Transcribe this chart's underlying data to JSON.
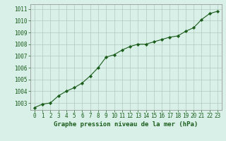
{
  "x": [
    0,
    1,
    2,
    3,
    4,
    5,
    6,
    7,
    8,
    9,
    10,
    11,
    12,
    13,
    14,
    15,
    16,
    17,
    18,
    19,
    20,
    21,
    22,
    23
  ],
  "y": [
    1002.6,
    1002.9,
    1003.0,
    1003.6,
    1004.0,
    1004.3,
    1004.7,
    1005.3,
    1006.0,
    1006.9,
    1007.1,
    1007.5,
    1007.8,
    1008.0,
    1008.0,
    1008.2,
    1008.4,
    1008.6,
    1008.7,
    1009.1,
    1009.4,
    1010.1,
    1010.6,
    1010.8
  ],
  "line_color": "#1a5c1a",
  "marker": "D",
  "marker_size": 2.2,
  "bg_color": "#d8f0e8",
  "grid_color": "#b0c8bc",
  "xlabel": "Graphe pression niveau de la mer (hPa)",
  "xlabel_color": "#1a5c1a",
  "xlabel_fontsize": 6.5,
  "tick_color": "#1a5c1a",
  "tick_fontsize": 5.5,
  "ylim": [
    1002.4,
    1011.4
  ],
  "yticks": [
    1003,
    1004,
    1005,
    1006,
    1007,
    1008,
    1009,
    1010,
    1011
  ],
  "xlim": [
    -0.5,
    23.5
  ]
}
